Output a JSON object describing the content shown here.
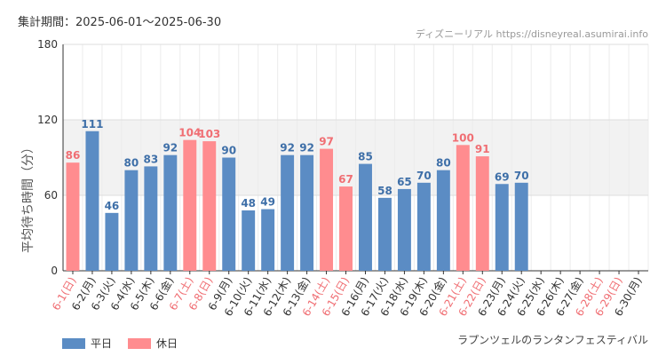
{
  "header": {
    "period_label": "集計期間：2025-06-01～2025-06-30",
    "site_label": "ディズニーリアル https://disneyreal.asumirai.info"
  },
  "attraction_name": "ラプンツェルのランタンフェスティバル",
  "legend": [
    {
      "label": "平日",
      "color": "#5b8cc4"
    },
    {
      "label": "休日",
      "color": "#ff8c8f"
    }
  ],
  "colors": {
    "weekday": "#5b8cc4",
    "holiday": "#ff8c8f",
    "weekday_label": "#3e6fa8",
    "holiday_label": "#f06e73",
    "weekday_tick": "#333333",
    "holiday_tick": "#f06e73",
    "band": "#f2f2f2"
  },
  "chart_data": {
    "type": "bar",
    "ylabel": "平均待ち時間（分）",
    "ylim": [
      0,
      180
    ],
    "yticks": [
      0,
      60,
      120,
      180
    ],
    "shaded_band": [
      60,
      120
    ],
    "categories": [
      "6-1(日)",
      "6-2(月)",
      "6-3(火)",
      "6-4(水)",
      "6-5(木)",
      "6-6(金)",
      "6-7(土)",
      "6-8(日)",
      "6-9(月)",
      "6-10(火)",
      "6-11(水)",
      "6-12(木)",
      "6-13(金)",
      "6-14(土)",
      "6-15(日)",
      "6-16(月)",
      "6-17(火)",
      "6-18(水)",
      "6-19(木)",
      "6-20(金)",
      "6-21(土)",
      "6-22(日)",
      "6-23(月)",
      "6-24(火)",
      "6-25(水)",
      "6-26(木)",
      "6-27(金)",
      "6-28(土)",
      "6-29(日)",
      "6-30(月)"
    ],
    "values": [
      86,
      111,
      46,
      80,
      83,
      92,
      104,
      103,
      90,
      48,
      49,
      92,
      92,
      97,
      67,
      85,
      58,
      65,
      70,
      80,
      100,
      91,
      69,
      70,
      null,
      null,
      null,
      null,
      null,
      null
    ],
    "holiday": [
      true,
      false,
      false,
      false,
      false,
      false,
      true,
      true,
      false,
      false,
      false,
      false,
      false,
      true,
      true,
      false,
      false,
      false,
      false,
      false,
      true,
      true,
      false,
      false,
      false,
      false,
      false,
      true,
      true,
      false
    ]
  }
}
